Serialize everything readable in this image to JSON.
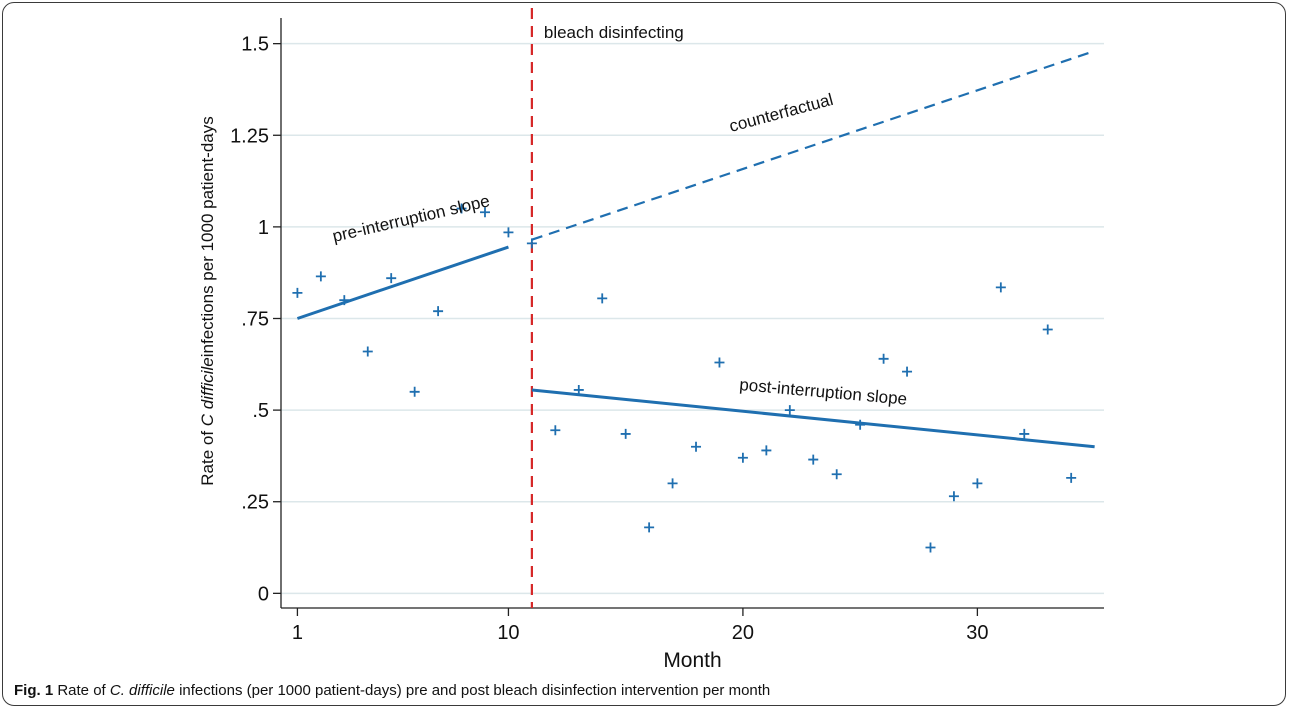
{
  "chart_data": {
    "type": "scatter",
    "x_label": "Month",
    "y_label": {
      "prefix": "Rate of ",
      "italic": "C difficile",
      "suffix": "infections per 1000 patient-days"
    },
    "x_range": [
      0.3,
      35.4
    ],
    "y_range": [
      -0.04,
      1.57
    ],
    "x_ticks": [
      1,
      10,
      20,
      30
    ],
    "y_ticks": [
      {
        "value": 0,
        "label": "0"
      },
      {
        "value": 0.25,
        "label": ".25"
      },
      {
        "value": 0.5,
        "label": ".5"
      },
      {
        "value": 0.75,
        "label": ".75"
      },
      {
        "value": 1,
        "label": "1"
      },
      {
        "value": 1.25,
        "label": "1.25"
      },
      {
        "value": 1.5,
        "label": "1.5"
      }
    ],
    "grid": true,
    "intervention": {
      "x": 11,
      "label": "bleach disinfecting"
    },
    "points": [
      {
        "x": 1,
        "y": 0.82
      },
      {
        "x": 2,
        "y": 0.865
      },
      {
        "x": 3,
        "y": 0.8
      },
      {
        "x": 4,
        "y": 0.66
      },
      {
        "x": 5,
        "y": 0.86
      },
      {
        "x": 6,
        "y": 0.55
      },
      {
        "x": 7,
        "y": 0.77
      },
      {
        "x": 8,
        "y": 1.05
      },
      {
        "x": 9,
        "y": 1.04
      },
      {
        "x": 10,
        "y": 0.985
      },
      {
        "x": 11,
        "y": 0.955
      },
      {
        "x": 12,
        "y": 0.445
      },
      {
        "x": 13,
        "y": 0.555
      },
      {
        "x": 14,
        "y": 0.805
      },
      {
        "x": 15,
        "y": 0.435
      },
      {
        "x": 16,
        "y": 0.18
      },
      {
        "x": 17,
        "y": 0.3
      },
      {
        "x": 18,
        "y": 0.4
      },
      {
        "x": 19,
        "y": 0.63
      },
      {
        "x": 20,
        "y": 0.37
      },
      {
        "x": 21,
        "y": 0.39
      },
      {
        "x": 22,
        "y": 0.5
      },
      {
        "x": 23,
        "y": 0.365
      },
      {
        "x": 24,
        "y": 0.325
      },
      {
        "x": 25,
        "y": 0.46
      },
      {
        "x": 26,
        "y": 0.64
      },
      {
        "x": 27,
        "y": 0.605
      },
      {
        "x": 28,
        "y": 0.125
      },
      {
        "x": 29,
        "y": 0.265
      },
      {
        "x": 30,
        "y": 0.3
      },
      {
        "x": 31,
        "y": 0.835
      },
      {
        "x": 32,
        "y": 0.435
      },
      {
        "x": 33,
        "y": 0.72
      },
      {
        "x": 34,
        "y": 0.315
      }
    ],
    "lines": [
      {
        "label": "pre-interruption slope",
        "style": "solid",
        "x": [
          1,
          10
        ],
        "y": [
          0.75,
          0.945
        ]
      },
      {
        "label": "counterfactual",
        "style": "dashed",
        "x": [
          11,
          35
        ],
        "y": [
          0.965,
          1.48
        ]
      },
      {
        "label": "post-interruption slope",
        "style": "solid",
        "x": [
          11,
          35
        ],
        "y": [
          0.555,
          0.4
        ]
      }
    ],
    "colors": {
      "series": "#1f6fb0",
      "intervention": "#d62728",
      "grid": "#dce7ea"
    }
  },
  "caption": {
    "fig_label": "Fig. 1",
    "part1": " Rate of ",
    "italic": "C. difficile",
    "part2": " infections (per 1000 patient-days) pre and post bleach disinfection intervention per month"
  }
}
